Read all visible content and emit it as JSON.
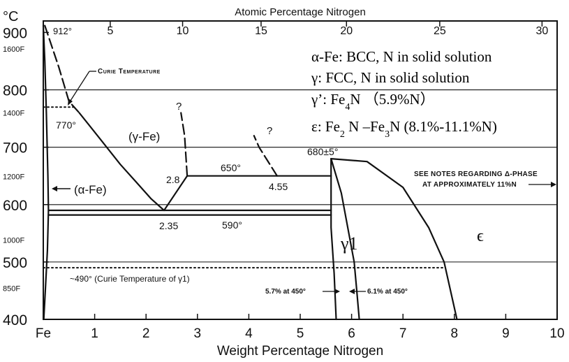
{
  "chart_data": {
    "type": "phase-diagram",
    "title": "Atomic Percentage Nitrogen",
    "xlabel": "Weight Percentage Nitrogen",
    "ylabel": "°C",
    "xlim": [
      0,
      10
    ],
    "ylim": [
      400,
      920
    ],
    "x_tick_labels": [
      "Fe",
      "1",
      "2",
      "3",
      "4",
      "5",
      "6",
      "7",
      "8",
      "9",
      "10"
    ],
    "top_axis": {
      "label": "Atomic Percentage Nitrogen",
      "ticks": [
        {
          "at": 5,
          "label": "5"
        },
        {
          "at": 10,
          "label": "10"
        },
        {
          "at": 15,
          "label": "15"
        },
        {
          "at": 20,
          "label": "20"
        },
        {
          "at": 25,
          "label": "25"
        },
        {
          "at": 30,
          "label": "30"
        }
      ]
    },
    "y_ticks_c": [
      {
        "value": 400,
        "label": "400"
      },
      {
        "value": 500,
        "label": "500"
      },
      {
        "value": 600,
        "label": "600"
      },
      {
        "value": 700,
        "label": "700"
      },
      {
        "value": 800,
        "label": "800"
      },
      {
        "value": 900,
        "label": "900"
      }
    ],
    "y_ticks_f": [
      {
        "value": 454,
        "label": "850F"
      },
      {
        "value": 538,
        "label": "1000F"
      },
      {
        "value": 649,
        "label": "1200F"
      },
      {
        "value": 760,
        "label": "1400F"
      },
      {
        "value": 871,
        "label": "1600F"
      }
    ],
    "gridlines_c": [
      500,
      600,
      700,
      800
    ],
    "curves": [
      {
        "name": "alpha-solvus",
        "style": "solid",
        "points": [
          [
            0,
            912
          ],
          [
            0.03,
            850
          ],
          [
            0.06,
            760
          ],
          [
            0.09,
            650
          ],
          [
            0.1,
            590
          ],
          [
            0.08,
            520
          ],
          [
            0.04,
            450
          ],
          [
            0.01,
            400
          ]
        ]
      },
      {
        "name": "gamma-lower-left-dashed",
        "style": "dashed",
        "points": [
          [
            0.03,
            912
          ],
          [
            0.3,
            840
          ],
          [
            0.5,
            780
          ],
          [
            0.7,
            760
          ]
        ]
      },
      {
        "name": "gamma-lower-left",
        "style": "solid",
        "points": [
          [
            0.7,
            760
          ],
          [
            1.1,
            715
          ],
          [
            1.5,
            670
          ],
          [
            1.8,
            640
          ],
          [
            2.1,
            610
          ],
          [
            2.35,
            590
          ]
        ]
      },
      {
        "name": "gamma-right-boundary",
        "style": "solid",
        "points": [
          [
            2.35,
            590
          ],
          [
            2.8,
            650
          ]
        ]
      },
      {
        "name": "gamma-right-dashed",
        "style": "dashed",
        "points": [
          [
            2.8,
            650
          ],
          [
            2.75,
            720
          ],
          [
            2.68,
            760
          ]
        ]
      },
      {
        "name": "peritectoid-650",
        "style": "solid",
        "points": [
          [
            2.8,
            650
          ],
          [
            5.6,
            650
          ]
        ]
      },
      {
        "name": "four-55-dashed",
        "style": "dashed",
        "points": [
          [
            4.55,
            650
          ],
          [
            4.2,
            700
          ],
          [
            4.1,
            720
          ]
        ]
      },
      {
        "name": "eutectoid-590",
        "style": "solid",
        "points": [
          [
            0.1,
            590
          ],
          [
            5.6,
            590
          ]
        ]
      },
      {
        "name": "eutectoid-590-lower",
        "style": "solid",
        "points": [
          [
            0.1,
            582
          ],
          [
            5.6,
            582
          ]
        ]
      },
      {
        "name": "gamma-prime-left",
        "style": "solid",
        "points": [
          [
            5.6,
            680
          ],
          [
            5.6,
            560
          ],
          [
            5.66,
            480
          ],
          [
            5.7,
            400
          ]
        ]
      },
      {
        "name": "gamma-prime-right",
        "style": "solid",
        "points": [
          [
            5.6,
            680
          ],
          [
            5.8,
            620
          ],
          [
            6.05,
            500
          ],
          [
            6.1,
            450
          ],
          [
            6.15,
            400
          ]
        ]
      },
      {
        "name": "epsilon-boundary",
        "style": "solid",
        "points": [
          [
            5.6,
            680
          ],
          [
            6.3,
            675
          ],
          [
            7.0,
            630
          ],
          [
            7.5,
            560
          ],
          [
            7.8,
            500
          ],
          [
            8.05,
            400
          ]
        ]
      }
    ],
    "dotted_lines": [
      {
        "label": "770°",
        "points": [
          [
            0,
            770
          ],
          [
            0.6,
            770
          ]
        ]
      },
      {
        "label": "~490° (Curie Temperature of γ1)",
        "points": [
          [
            0,
            490
          ],
          [
            7.8,
            490
          ]
        ]
      }
    ],
    "annotations": [
      {
        "text": "912°"
      },
      {
        "text": "Curie Temperature"
      },
      {
        "text": "770°"
      },
      {
        "text": "(γ-Fe)"
      },
      {
        "text": "(α-Fe)"
      },
      {
        "text": "2.8"
      },
      {
        "text": "2.35"
      },
      {
        "text": "650°"
      },
      {
        "text": "590°"
      },
      {
        "text": "4.55"
      },
      {
        "text": "680±5°"
      },
      {
        "text": "γ1"
      },
      {
        "text": "ϵ"
      },
      {
        "text": "See notes regarding δ-phase"
      },
      {
        "text": "at approximately 11%N"
      },
      {
        "text": "~490° (Curie Temperature of γ1)"
      },
      {
        "text": "5.7% at 450°"
      },
      {
        "text": "6.1% at 450°"
      },
      {
        "text": "?"
      },
      {
        "text": "?"
      }
    ],
    "legend_lines": [
      "α-Fe: BCC, N in solid solution",
      "γ: FCC, N in solid solution",
      "γ’:  Fe4N  （5.9%N）",
      "ε:  Fe2 N –Fe3N (8.1%-11.1%N)"
    ],
    "grid": true
  }
}
